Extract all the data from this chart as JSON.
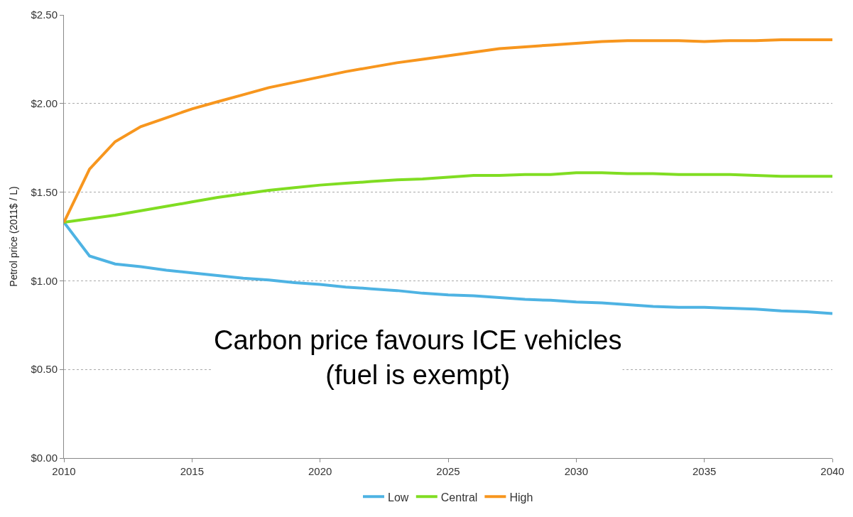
{
  "chart_data": {
    "type": "line",
    "ylabel": "Petrol price (2011$ / L)",
    "x": [
      2010,
      2011,
      2012,
      2013,
      2014,
      2015,
      2016,
      2017,
      2018,
      2019,
      2020,
      2021,
      2022,
      2023,
      2024,
      2025,
      2026,
      2027,
      2028,
      2029,
      2030,
      2031,
      2032,
      2033,
      2034,
      2035,
      2036,
      2037,
      2038,
      2039,
      2040
    ],
    "series": [
      {
        "name": "Low",
        "color": "#4eb3e3",
        "values": [
          1.33,
          1.14,
          1.095,
          1.08,
          1.06,
          1.045,
          1.03,
          1.015,
          1.005,
          0.99,
          0.98,
          0.965,
          0.955,
          0.945,
          0.93,
          0.92,
          0.915,
          0.905,
          0.895,
          0.89,
          0.88,
          0.875,
          0.865,
          0.855,
          0.85,
          0.85,
          0.845,
          0.84,
          0.83,
          0.825,
          0.815
        ]
      },
      {
        "name": "Central",
        "color": "#80dd22",
        "values": [
          1.33,
          1.35,
          1.37,
          1.395,
          1.42,
          1.445,
          1.47,
          1.49,
          1.51,
          1.525,
          1.54,
          1.55,
          1.56,
          1.57,
          1.575,
          1.585,
          1.595,
          1.595,
          1.6,
          1.6,
          1.61,
          1.61,
          1.605,
          1.605,
          1.6,
          1.6,
          1.6,
          1.595,
          1.59,
          1.59,
          1.59
        ]
      },
      {
        "name": "High",
        "color": "#f7961e",
        "values": [
          1.33,
          1.63,
          1.785,
          1.87,
          1.92,
          1.97,
          2.01,
          2.05,
          2.09,
          2.12,
          2.15,
          2.18,
          2.205,
          2.23,
          2.25,
          2.27,
          2.29,
          2.31,
          2.32,
          2.33,
          2.34,
          2.35,
          2.355,
          2.355,
          2.355,
          2.35,
          2.355,
          2.355,
          2.36,
          2.36,
          2.36
        ]
      }
    ],
    "xlim": [
      2010,
      2040
    ],
    "xticks": [
      2010,
      2015,
      2020,
      2025,
      2030,
      2035,
      2040
    ],
    "ylim": [
      0,
      2.5
    ],
    "yticks": [
      {
        "value": 0,
        "label": "$0.00"
      },
      {
        "value": 0.5,
        "label": "$0.50"
      },
      {
        "value": 1,
        "label": "$1.00"
      },
      {
        "value": 1.5,
        "label": "$1.50"
      },
      {
        "value": 2,
        "label": "$2.00"
      },
      {
        "value": 2.5,
        "label": "$2.50"
      }
    ],
    "grid": "y",
    "legend": "bottom",
    "marker": "none",
    "line_style": "solid",
    "annotations": [
      "Carbon price favours ICE vehicles\n(fuel is exempt)"
    ]
  }
}
